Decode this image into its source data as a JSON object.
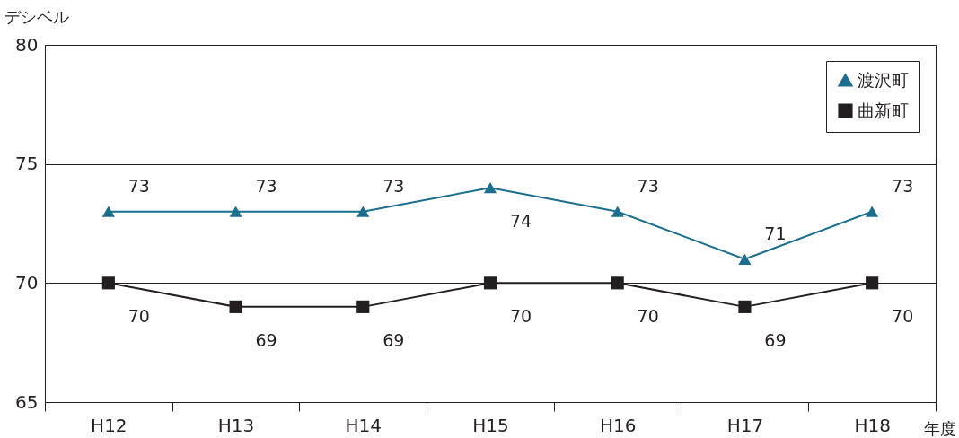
{
  "chart_data": {
    "type": "line",
    "xlabel": "年度",
    "ylabel": "デシベル",
    "categories": [
      "H12",
      "H13",
      "H14",
      "H15",
      "H16",
      "H17",
      "H18"
    ],
    "series": [
      {
        "name": "渡沢町",
        "color": "#1a6e8e",
        "marker": "triangle",
        "values": [
          73,
          73,
          73,
          74,
          73,
          71,
          73
        ]
      },
      {
        "name": "曲新町",
        "color": "#231f20",
        "marker": "square",
        "values": [
          70,
          69,
          69,
          70,
          70,
          69,
          70
        ]
      }
    ],
    "ylim": [
      65,
      80
    ],
    "yticks": [
      65,
      70,
      75,
      80
    ],
    "grid": "y",
    "legend": "top right",
    "data_labels": true
  }
}
